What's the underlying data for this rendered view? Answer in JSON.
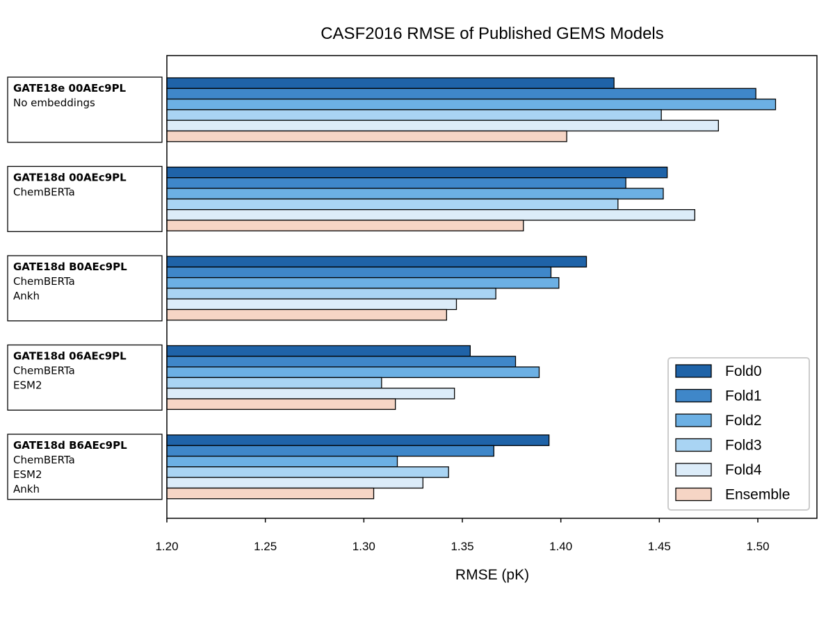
{
  "chart_data": {
    "type": "bar",
    "orientation": "horizontal",
    "title": "CASF2016 RMSE of Published GEMS Models",
    "xlabel": "RMSE (pK)",
    "ylabel": "",
    "xlim": [
      1.2,
      1.53
    ],
    "xticks": [
      "1.20",
      "1.25",
      "1.30",
      "1.35",
      "1.40",
      "1.45",
      "1.50"
    ],
    "xtick_values": [
      1.2,
      1.25,
      1.3,
      1.35,
      1.4,
      1.45,
      1.5
    ],
    "grid": false,
    "legend_position": "bottom-right",
    "categories": [
      {
        "name": "GATE18e 00AEc9PL",
        "lines": [
          "No embeddings"
        ]
      },
      {
        "name": "GATE18d 00AEc9PL",
        "lines": [
          "ChemBERTa"
        ]
      },
      {
        "name": "GATE18d B0AEc9PL",
        "lines": [
          "ChemBERTa",
          "Ankh"
        ]
      },
      {
        "name": "GATE18d 06AEc9PL",
        "lines": [
          "ChemBERTa",
          "ESM2"
        ]
      },
      {
        "name": "GATE18d B6AEc9PL",
        "lines": [
          "ChemBERTa",
          "ESM2",
          "Ankh"
        ]
      }
    ],
    "series": [
      {
        "name": "Fold0",
        "color": "#1f63a8",
        "values": [
          1.427,
          1.454,
          1.413,
          1.354,
          1.394
        ]
      },
      {
        "name": "Fold1",
        "color": "#3f87c9",
        "values": [
          1.499,
          1.433,
          1.395,
          1.377,
          1.366
        ]
      },
      {
        "name": "Fold2",
        "color": "#6cb0e4",
        "values": [
          1.509,
          1.452,
          1.399,
          1.389,
          1.317
        ]
      },
      {
        "name": "Fold3",
        "color": "#a9d4f3",
        "values": [
          1.451,
          1.429,
          1.367,
          1.309,
          1.343
        ]
      },
      {
        "name": "Fold4",
        "color": "#dcecf9",
        "values": [
          1.48,
          1.468,
          1.347,
          1.346,
          1.33
        ]
      },
      {
        "name": "Ensemble",
        "color": "#f6d5c5",
        "values": [
          1.403,
          1.381,
          1.342,
          1.316,
          1.305
        ]
      }
    ]
  }
}
